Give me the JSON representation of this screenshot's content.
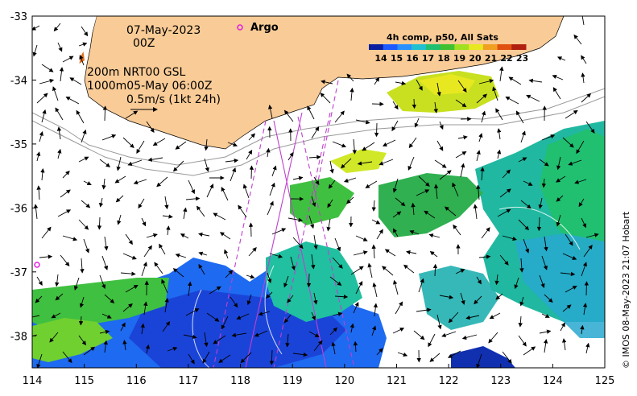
{
  "map": {
    "lon_range": [
      114,
      125
    ],
    "lat_range": [
      -38.5,
      -33
    ],
    "x_ticks": [
      "114",
      "115",
      "116",
      "117",
      "118",
      "119",
      "120",
      "121",
      "122",
      "123",
      "124",
      "125"
    ],
    "y_ticks": [
      "-33",
      "-34",
      "-35",
      "-36",
      "-37",
      "-38"
    ]
  },
  "annotations": {
    "date": "07-May-2023",
    "hour": "00Z",
    "line1": "200m  NRT00 GSL",
    "line2": "1000m05-May 06:00Z",
    "scale": "0.5m/s (1kt 24h)",
    "argo_label": "Argo"
  },
  "colorbar": {
    "title": "4h comp, p50, All Sats",
    "ticks": [
      "14",
      "15",
      "16",
      "17",
      "18",
      "19",
      "20",
      "21",
      "22",
      "23"
    ],
    "colors": [
      "#0a1ea0",
      "#1e5aff",
      "#2890ff",
      "#20c0d0",
      "#20c070",
      "#40c030",
      "#a0e020",
      "#e8e820",
      "#f0a020",
      "#e05010",
      "#b02010"
    ]
  },
  "credit": "© IMOS 08-May-2023 21:07 Hobart",
  "colors": {
    "land": "#f9cb96",
    "argo": "#e020e0",
    "track": "#c040d0"
  }
}
